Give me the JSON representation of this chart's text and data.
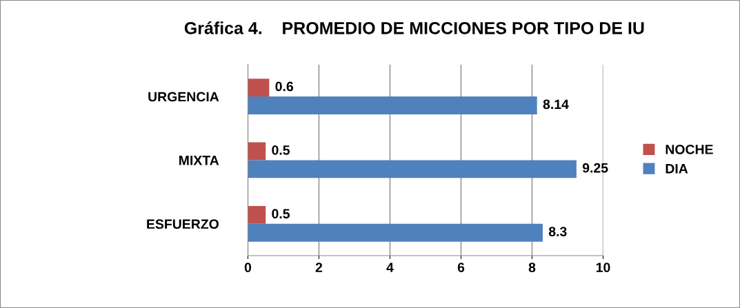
{
  "chart_data": {
    "type": "bar",
    "orientation": "horizontal",
    "title": "Gráfica 4.    PROMEDIO DE MICCIONES POR TIPO DE IU",
    "categories": [
      "URGENCIA",
      "MIXTA",
      "ESFUERZO"
    ],
    "series": [
      {
        "name": "NOCHE",
        "color": "#c0504d",
        "values": [
          0.6,
          0.5,
          0.5
        ]
      },
      {
        "name": "DIA",
        "color": "#4f81bd",
        "values": [
          8.14,
          9.25,
          8.3
        ]
      }
    ],
    "xlim": [
      0,
      10
    ],
    "xticks": [
      0,
      2,
      4,
      6,
      8,
      10
    ],
    "grid": "x",
    "legend": "right",
    "data_labels": true
  }
}
